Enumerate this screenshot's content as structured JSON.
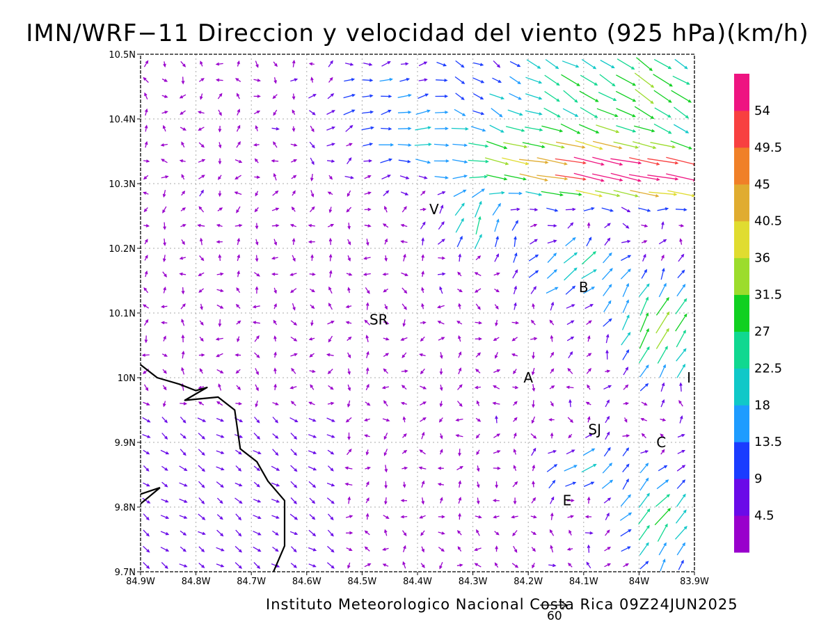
{
  "title": "IMN/WRF−11 Direccion y velocidad del viento (925 hPa)(km/h)",
  "footer": "Instituto Meteorologico Nacional Costa Rica 09Z24JUN2025",
  "reference_vector_label": "60",
  "axes": {
    "x_ticks": [
      "84.9W",
      "84.8W",
      "84.7W",
      "84.6W",
      "84.5W",
      "84.4W",
      "84.3W",
      "84.2W",
      "84.1W",
      "84W",
      "83.9W"
    ],
    "y_ticks": [
      "10.5N",
      "10.4N",
      "10.3N",
      "10.2N",
      "10.1N",
      "10N",
      "9.9N",
      "9.8N",
      "9.7N"
    ],
    "lon_range": [
      -84.9,
      -83.9
    ],
    "lat_range": [
      9.7,
      10.5
    ],
    "grid": true
  },
  "place_labels": [
    {
      "text": "V",
      "lon": -84.37,
      "lat": 10.26
    },
    {
      "text": "SR",
      "lon": -84.47,
      "lat": 10.09
    },
    {
      "text": "B",
      "lon": -84.1,
      "lat": 10.14
    },
    {
      "text": "A",
      "lon": -84.2,
      "lat": 10.0
    },
    {
      "text": "I",
      "lon": -83.91,
      "lat": 10.0
    },
    {
      "text": "SJ",
      "lon": -84.08,
      "lat": 9.92
    },
    {
      "text": "C",
      "lon": -83.96,
      "lat": 9.9
    },
    {
      "text": "E",
      "lon": -84.13,
      "lat": 9.81
    }
  ],
  "colorbar": {
    "labels": [
      "4.5",
      "9",
      "13.5",
      "18",
      "22.5",
      "27",
      "31.5",
      "36",
      "40.5",
      "45",
      "49.5",
      "54"
    ],
    "colors": [
      "#9900cc",
      "#6a0ae8",
      "#1a3cff",
      "#1e9cff",
      "#10c8c8",
      "#10d890",
      "#10d020",
      "#9cdc2c",
      "#e0dc30",
      "#e0ac30",
      "#f08028",
      "#f84040",
      "#ee1481"
    ]
  },
  "coastline": [
    [
      -84.9,
      10.02
    ],
    [
      -84.87,
      10.0
    ],
    [
      -84.83,
      9.99
    ],
    [
      -84.8,
      9.98
    ],
    [
      -84.78,
      9.985
    ],
    [
      -84.82,
      9.965
    ],
    [
      -84.76,
      9.97
    ],
    [
      -84.73,
      9.95
    ],
    [
      -84.72,
      9.89
    ],
    [
      -84.69,
      9.87
    ],
    [
      -84.67,
      9.84
    ],
    [
      -84.64,
      9.81
    ],
    [
      -84.64,
      9.74
    ],
    [
      -84.66,
      9.7
    ]
  ],
  "peninsula_tip": [
    [
      -84.9,
      9.82
    ],
    [
      -84.865,
      9.83
    ],
    [
      -84.9,
      9.805
    ]
  ],
  "wind_field": {
    "description_of_regimes": [
      {
        "type": "background",
        "speed_kmh": 3,
        "dir_deg": 45
      },
      {
        "type": "jet",
        "center": [
          -83.95,
          10.31
        ],
        "speed_kmh": 54,
        "dir_deg": -12
      },
      {
        "type": "inflow_ne",
        "center": [
          -84.02,
          10.45
        ],
        "speed_kmh": 32,
        "dir_deg": -35
      },
      {
        "type": "outflow_se",
        "center": [
          -83.96,
          10.08
        ],
        "speed_kmh": 33,
        "dir_deg": 60
      },
      {
        "type": "southeast_flow",
        "center": [
          -83.97,
          9.78
        ],
        "speed_kmh": 27,
        "dir_deg": 60
      },
      {
        "type": "nw_return",
        "center": [
          -84.5,
          10.42
        ],
        "speed_kmh": 14,
        "dir_deg": 20
      }
    ]
  }
}
